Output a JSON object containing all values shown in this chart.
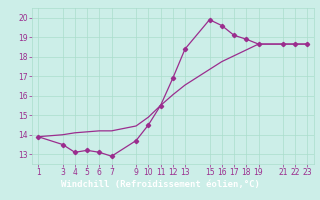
{
  "line1_x": [
    1,
    3,
    4,
    5,
    6,
    7,
    9,
    10,
    11,
    12,
    13,
    15,
    16,
    17,
    18,
    19,
    21,
    22,
    23
  ],
  "line1_y": [
    13.9,
    13.5,
    13.1,
    13.2,
    13.1,
    12.9,
    13.7,
    14.5,
    15.5,
    16.9,
    18.4,
    19.9,
    19.6,
    19.1,
    18.9,
    18.65,
    18.65,
    18.65,
    18.65
  ],
  "line2_x": [
    1,
    3,
    4,
    5,
    6,
    7,
    9,
    10,
    11,
    12,
    13,
    15,
    16,
    17,
    18,
    19,
    21,
    22,
    23
  ],
  "line2_y": [
    13.9,
    14.0,
    14.1,
    14.15,
    14.2,
    14.2,
    14.45,
    14.9,
    15.5,
    16.05,
    16.55,
    17.35,
    17.75,
    18.05,
    18.35,
    18.65,
    18.65,
    18.65,
    18.65
  ],
  "color": "#9b2d8e",
  "bg_color": "#cceee8",
  "grid_color": "#aaddcc",
  "xlabel": "Windchill (Refroidissement éolien,°C)",
  "xlabel_bg": "#9b2d8e",
  "xlabel_fg": "#ffffff",
  "ylim": [
    12.5,
    20.5
  ],
  "yticks": [
    13,
    14,
    15,
    16,
    17,
    18,
    19,
    20
  ],
  "xticks": [
    1,
    3,
    4,
    5,
    6,
    7,
    9,
    10,
    11,
    12,
    13,
    15,
    16,
    17,
    18,
    19,
    21,
    22,
    23
  ],
  "xlim": [
    0.5,
    23.5
  ],
  "tick_fontsize": 5.5,
  "xlabel_fontsize": 6.5,
  "marker": "D",
  "markersize": 2.2,
  "linewidth": 0.9
}
